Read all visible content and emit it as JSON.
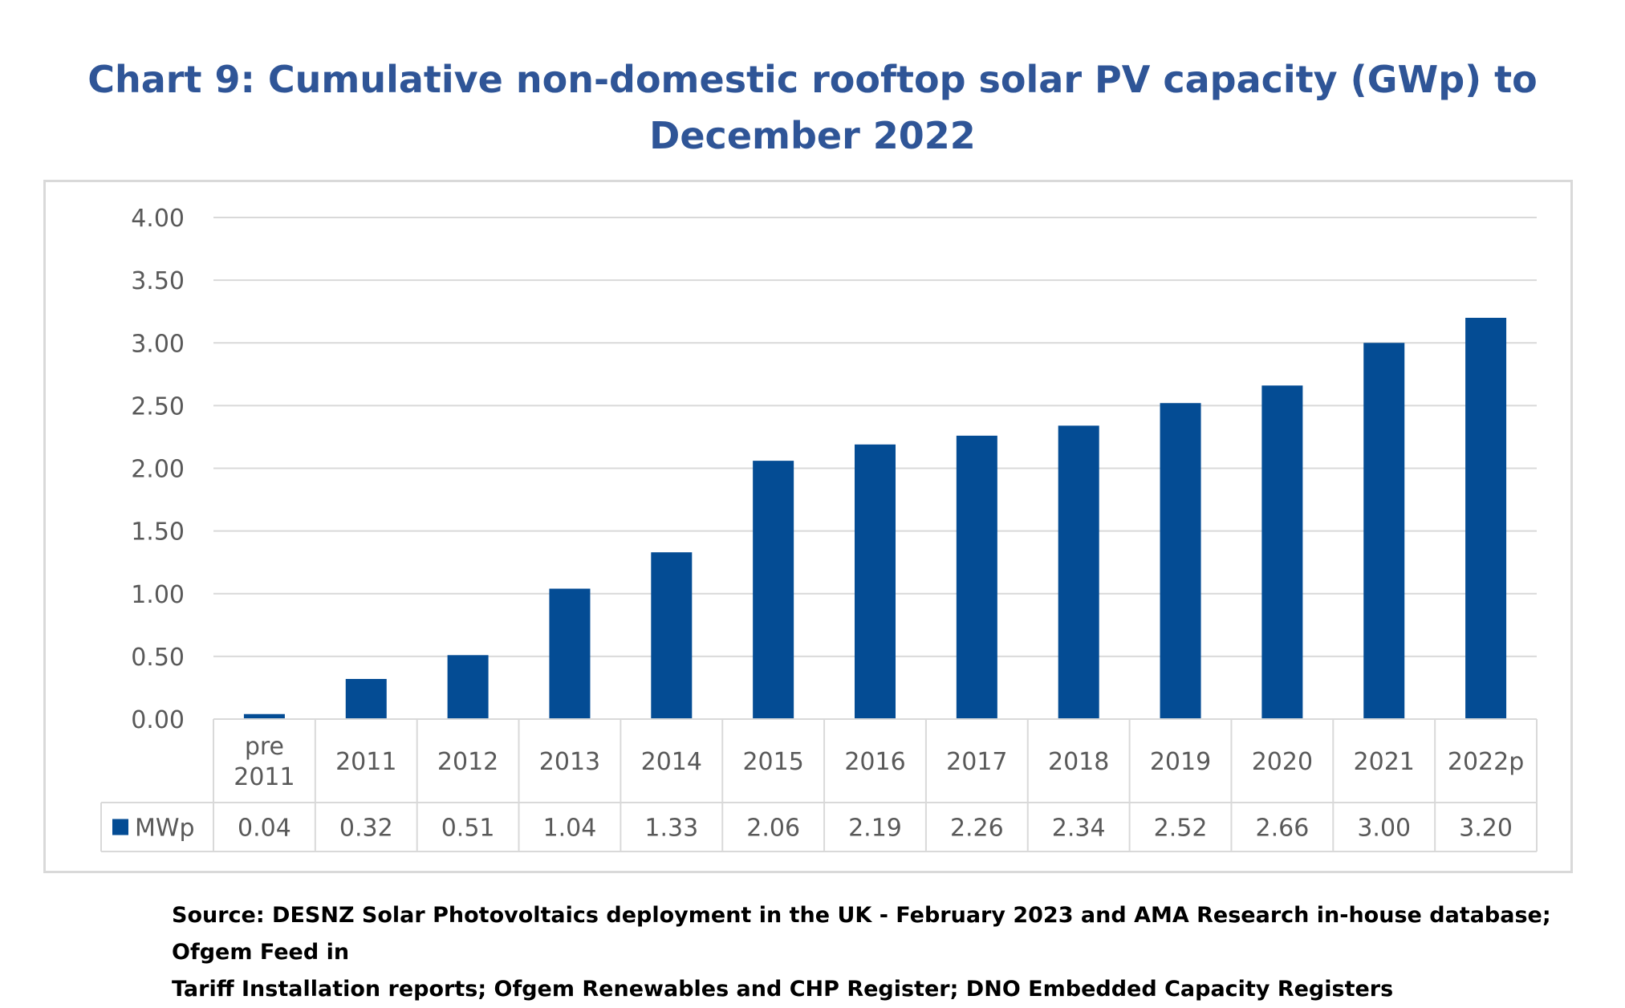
{
  "title_line1": "Chart 9: Cumulative non-domestic rooftop solar PV capacity (GWp) to",
  "title_line2": "December 2022",
  "chart_data": {
    "type": "bar",
    "title": "Chart 9: Cumulative non-domestic rooftop solar PV capacity (GWp) to December 2022",
    "categories": [
      [
        "pre",
        "2011"
      ],
      [
        "2011"
      ],
      [
        "2012"
      ],
      [
        "2013"
      ],
      [
        "2014"
      ],
      [
        "2015"
      ],
      [
        "2016"
      ],
      [
        "2017"
      ],
      [
        "2018"
      ],
      [
        "2019"
      ],
      [
        "2020"
      ],
      [
        "2021"
      ],
      [
        "2022p"
      ]
    ],
    "series": [
      {
        "name": "MWp",
        "values": [
          0.04,
          0.32,
          0.51,
          1.04,
          1.33,
          2.06,
          2.19,
          2.26,
          2.34,
          2.52,
          2.66,
          3.0,
          3.2
        ],
        "labels": [
          "0.04",
          "0.32",
          "0.51",
          "1.04",
          "1.33",
          "2.06",
          "2.19",
          "2.26",
          "2.34",
          "2.52",
          "2.66",
          "3.00",
          "3.20"
        ]
      }
    ],
    "yticks": [
      "0.00",
      "0.50",
      "1.00",
      "1.50",
      "2.00",
      "2.50",
      "3.00",
      "3.50",
      "4.00"
    ],
    "ylim": [
      0,
      4
    ],
    "xlabel": "",
    "ylabel": "",
    "grid": true,
    "data_table": true,
    "bar_color": "#044c94"
  },
  "source_line1": "Source: DESNZ Solar Photovoltaics deployment in the UK - February 2023 and AMA Research in-house database; Ofgem Feed in",
  "source_line2": "Tariff Installation reports; Ofgem Renewables and CHP Register; DNO Embedded Capacity Registers"
}
